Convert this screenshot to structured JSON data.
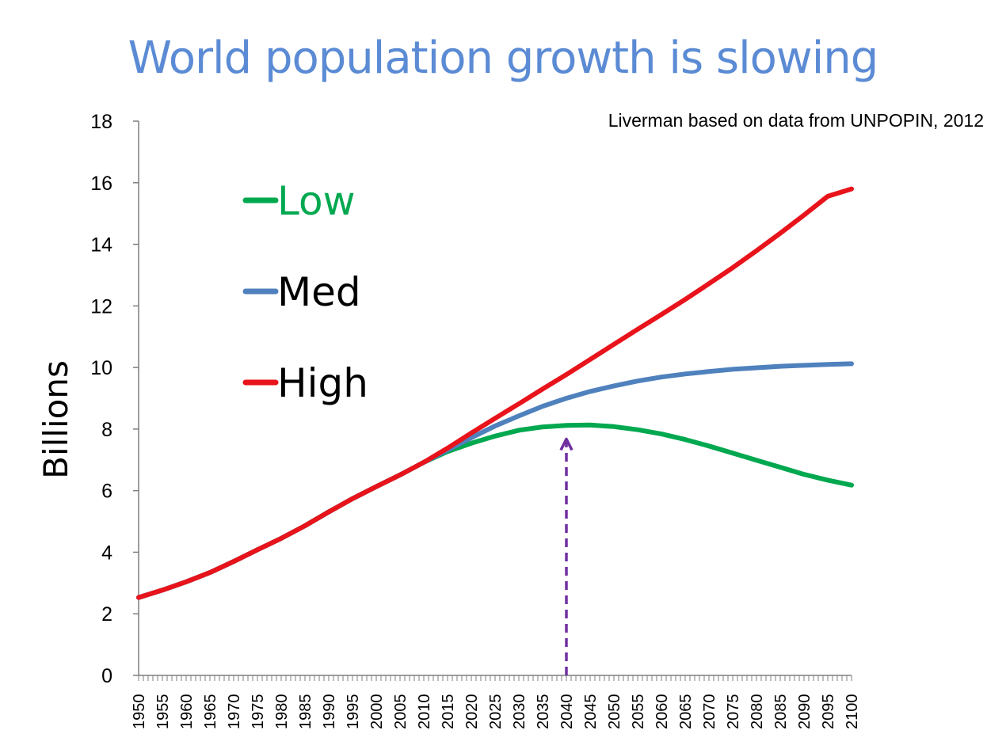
{
  "slide": {
    "title": "World population growth is slowing",
    "source_note": "Liverman based on data from UNPOPIN, 2012"
  },
  "colors": {
    "title": "#5b8bd4",
    "low": "#00a84f",
    "med": "#4f81bd",
    "high": "#e8131b",
    "arrow": "#7030a0"
  },
  "chart_data": {
    "type": "line",
    "title": "",
    "xlabel": "",
    "ylabel": "Billions",
    "ylim": [
      0,
      18
    ],
    "yticks": [
      0,
      2,
      4,
      6,
      8,
      10,
      12,
      14,
      16,
      18
    ],
    "xlim": [
      1950,
      2100
    ],
    "xticks": [
      1950,
      1955,
      1960,
      1965,
      1970,
      1975,
      1980,
      1985,
      1990,
      1995,
      2000,
      2005,
      2010,
      2015,
      2020,
      2025,
      2030,
      2035,
      2040,
      2045,
      2050,
      2055,
      2060,
      2065,
      2070,
      2075,
      2080,
      2085,
      2090,
      2095,
      2100
    ],
    "legend_position": "upper-left",
    "grid": false,
    "series": [
      {
        "name": "Low",
        "color": "#00a84f",
        "x": [
          1950,
          1955,
          1960,
          1965,
          1970,
          1975,
          1980,
          1985,
          1990,
          1995,
          2000,
          2005,
          2010,
          2015,
          2020,
          2025,
          2030,
          2035,
          2040,
          2045,
          2050,
          2055,
          2060,
          2065,
          2070,
          2075,
          2080,
          2085,
          2090,
          2095,
          2100
        ],
        "values": [
          2.53,
          2.77,
          3.04,
          3.34,
          3.7,
          4.08,
          4.45,
          4.86,
          5.31,
          5.74,
          6.13,
          6.51,
          6.92,
          7.27,
          7.54,
          7.77,
          7.96,
          8.07,
          8.12,
          8.13,
          8.08,
          7.98,
          7.84,
          7.66,
          7.45,
          7.22,
          6.99,
          6.76,
          6.53,
          6.34,
          6.18
        ]
      },
      {
        "name": "Med",
        "color": "#4f81bd",
        "x": [
          1950,
          1955,
          1960,
          1965,
          1970,
          1975,
          1980,
          1985,
          1990,
          1995,
          2000,
          2005,
          2010,
          2015,
          2020,
          2025,
          2030,
          2035,
          2040,
          2045,
          2050,
          2055,
          2060,
          2065,
          2070,
          2075,
          2080,
          2085,
          2090,
          2095,
          2100
        ],
        "values": [
          2.53,
          2.77,
          3.04,
          3.34,
          3.7,
          4.08,
          4.45,
          4.86,
          5.31,
          5.74,
          6.13,
          6.51,
          6.92,
          7.32,
          7.72,
          8.1,
          8.43,
          8.74,
          9.0,
          9.22,
          9.4,
          9.56,
          9.69,
          9.79,
          9.87,
          9.94,
          9.99,
          10.04,
          10.07,
          10.1,
          10.12
        ]
      },
      {
        "name": "High",
        "color": "#e8131b",
        "x": [
          1950,
          1955,
          1960,
          1965,
          1970,
          1975,
          1980,
          1985,
          1990,
          1995,
          2000,
          2005,
          2010,
          2015,
          2020,
          2025,
          2030,
          2035,
          2040,
          2045,
          2050,
          2055,
          2060,
          2065,
          2070,
          2075,
          2080,
          2085,
          2090,
          2095,
          2100
        ],
        "values": [
          2.53,
          2.77,
          3.04,
          3.34,
          3.7,
          4.08,
          4.45,
          4.86,
          5.31,
          5.74,
          6.13,
          6.51,
          6.92,
          7.38,
          7.87,
          8.35,
          8.82,
          9.3,
          9.77,
          10.26,
          10.75,
          11.24,
          11.72,
          12.21,
          12.72,
          13.24,
          13.79,
          14.36,
          14.95,
          15.56,
          15.8
        ]
      }
    ],
    "annotations": [
      {
        "type": "dashed-arrow",
        "x": 2040,
        "y_from": 0,
        "y_to": 7.6,
        "color": "#7030a0"
      }
    ]
  }
}
